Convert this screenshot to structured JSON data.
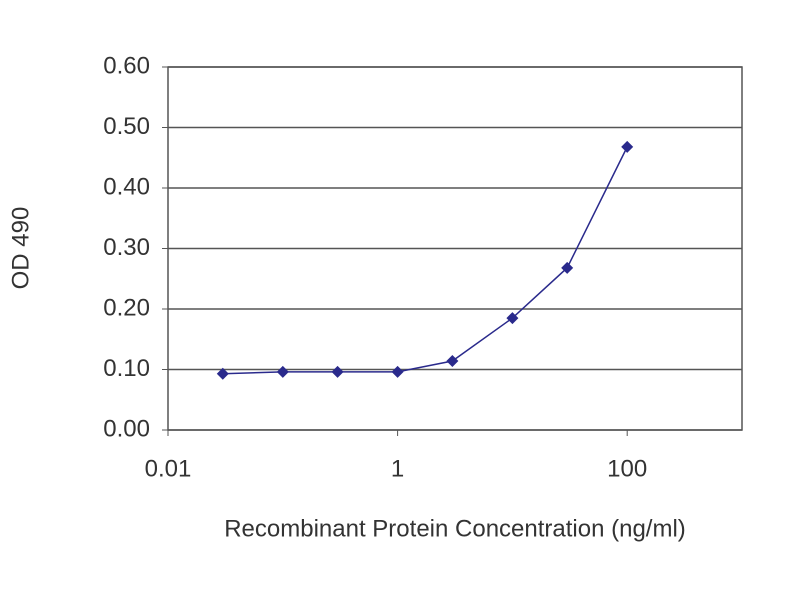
{
  "chart_data": {
    "type": "line",
    "x_label": "Recombinant Protein Concentration (ng/ml)",
    "y_label": "OD 490",
    "x": [
      0.03,
      0.1,
      0.3,
      1,
      3,
      10,
      30,
      100
    ],
    "series": [
      {
        "color": "#2a2a8c",
        "values": [
          0.093,
          0.096,
          0.096,
          0.096,
          0.114,
          0.185,
          0.268,
          0.468
        ]
      }
    ],
    "xlim": [
      0.01,
      1000
    ],
    "xscale": "log",
    "xticks": [
      0.01,
      1,
      100
    ],
    "ylim": [
      0,
      0.6
    ],
    "yticks": [
      {
        "value": 0,
        "label": "0.00"
      },
      {
        "value": 0.1,
        "label": "0.10"
      },
      {
        "value": 0.2,
        "label": "0.20"
      },
      {
        "value": 0.3,
        "label": "0.30"
      },
      {
        "value": 0.4,
        "label": "0.40"
      },
      {
        "value": 0.5,
        "label": "0.50"
      },
      {
        "value": 0.6,
        "label": "0.60"
      }
    ],
    "grid": true
  }
}
